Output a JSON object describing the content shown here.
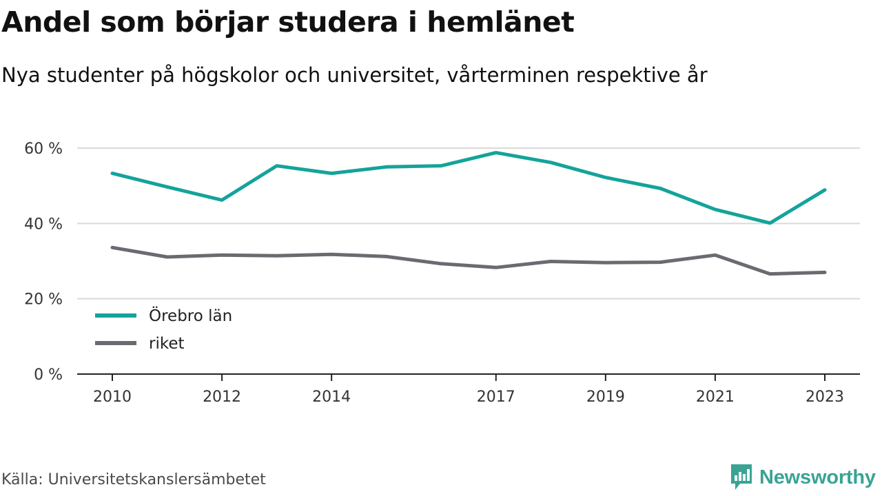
{
  "header": {
    "title": "Andel som börjar studera i hemlänet",
    "subtitle": "Nya studenter på högskolor och universitet, vårterminen respektive år"
  },
  "footer": {
    "source": "Källa: Universitetskanslersämbetet",
    "brand": "Newsworthy"
  },
  "colors": {
    "orebro": "#14a39a",
    "riket": "#6b6a70",
    "grid": "#d9d9d9",
    "axis": "#222222",
    "brand": "#3aa394"
  },
  "chart_data": {
    "type": "line",
    "x": [
      2010,
      2011,
      2012,
      2013,
      2014,
      2015,
      2016,
      2017,
      2018,
      2019,
      2020,
      2021,
      2022,
      2023
    ],
    "x_tick_labels": [
      "2010",
      "2012",
      "2014",
      "2017",
      "2019",
      "2021",
      "2023"
    ],
    "y_tick_labels": [
      "0 %",
      "20 %",
      "40 %",
      "60 %"
    ],
    "y_ticks": [
      0,
      20,
      40,
      60
    ],
    "ylim": [
      0,
      63
    ],
    "grid": "horizontal",
    "legend_position": "lower-left",
    "series": [
      {
        "name": "Örebro län",
        "color": "#14a39a",
        "values": [
          53.3,
          49.7,
          46.2,
          55.3,
          53.3,
          55.0,
          55.3,
          58.8,
          56.2,
          52.2,
          49.3,
          43.7,
          40.1,
          48.9
        ]
      },
      {
        "name": "riket",
        "color": "#6b6a70",
        "values": [
          33.6,
          31.1,
          31.6,
          31.4,
          31.8,
          31.2,
          29.3,
          28.3,
          29.9,
          29.6,
          29.7,
          31.6,
          26.6,
          27.0
        ]
      }
    ]
  }
}
